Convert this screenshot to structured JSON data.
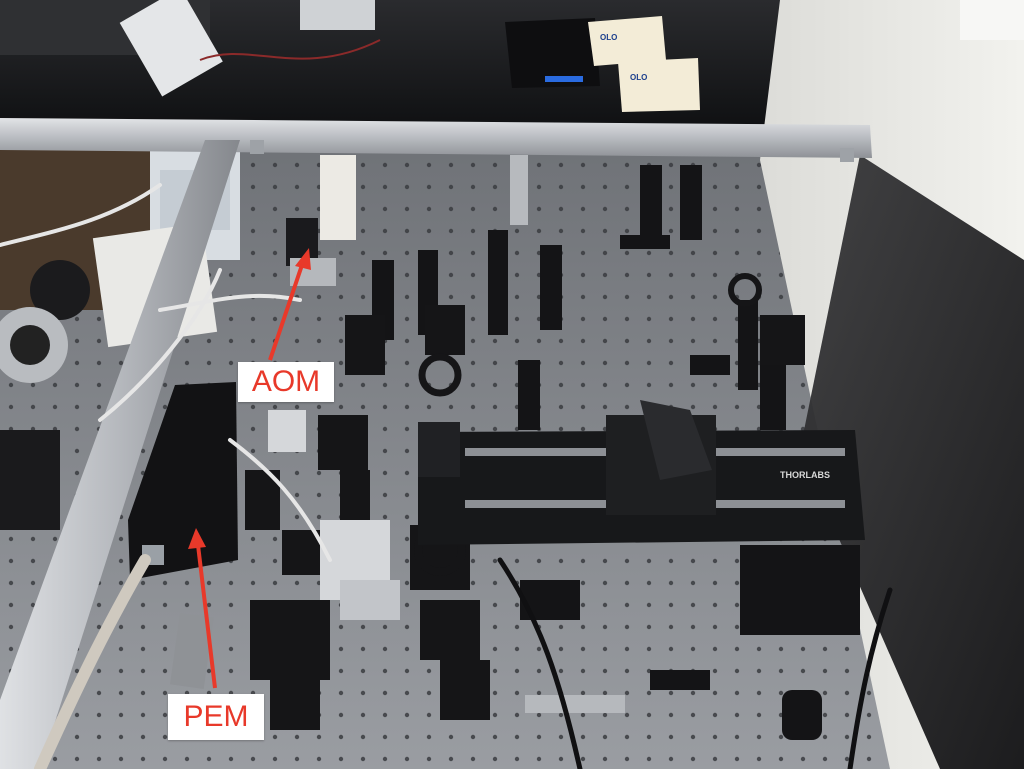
{
  "annotations": {
    "aom": {
      "label": "AOM"
    },
    "pem": {
      "label": "PEM"
    }
  },
  "stage": {
    "brand": "THORLABS"
  },
  "boxes": {
    "brand": "OLO"
  },
  "colors": {
    "annotation_text": "#e8392a",
    "annotation_arrow": "#e8392a",
    "breadboard": "#8c8f94",
    "enclosure_glass": "#1c1d20",
    "aluminum_rail": "#c9ccd0",
    "optics_black": "#141416"
  }
}
